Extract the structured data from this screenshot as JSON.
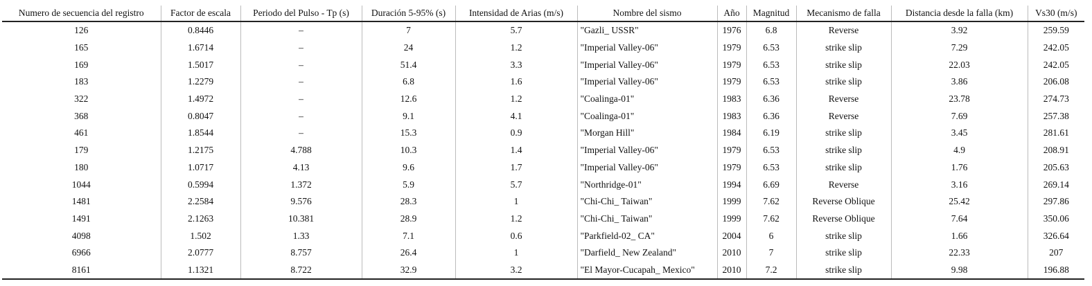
{
  "table": {
    "header": [
      "Numero de secuencia del registro",
      "Factor de escala",
      "Periodo del Pulso - Tp (s)",
      "Duración 5-95% (s)",
      "Intensidad de Arias (m/s)",
      "Nombre del sismo",
      "Año",
      "Magnitud",
      "Mecanismo de falla",
      "Distancia desde la falla (km)",
      "Vs30 (m/s)"
    ],
    "rows": [
      [
        "126",
        "0.8446",
        "–",
        "7",
        "5.7",
        "\"Gazli_ USSR\"",
        "1976",
        "6.8",
        "Reverse",
        "3.92",
        "259.59"
      ],
      [
        "165",
        "1.6714",
        "–",
        "24",
        "1.2",
        "\"Imperial Valley-06\"",
        "1979",
        "6.53",
        "strike slip",
        "7.29",
        "242.05"
      ],
      [
        "169",
        "1.5017",
        "–",
        "51.4",
        "3.3",
        "\"Imperial Valley-06\"",
        "1979",
        "6.53",
        "strike slip",
        "22.03",
        "242.05"
      ],
      [
        "183",
        "1.2279",
        "–",
        "6.8",
        "1.6",
        "\"Imperial Valley-06\"",
        "1979",
        "6.53",
        "strike slip",
        "3.86",
        "206.08"
      ],
      [
        "322",
        "1.4972",
        "–",
        "12.6",
        "1.2",
        "\"Coalinga-01\"",
        "1983",
        "6.36",
        "Reverse",
        "23.78",
        "274.73"
      ],
      [
        "368",
        "0.8047",
        "–",
        "9.1",
        "4.1",
        "\"Coalinga-01\"",
        "1983",
        "6.36",
        "Reverse",
        "7.69",
        "257.38"
      ],
      [
        "461",
        "1.8544",
        "–",
        "15.3",
        "0.9",
        "\"Morgan Hill\"",
        "1984",
        "6.19",
        "strike slip",
        "3.45",
        "281.61"
      ],
      [
        "179",
        "1.2175",
        "4.788",
        "10.3",
        "1.4",
        "\"Imperial Valley-06\"",
        "1979",
        "6.53",
        "strike slip",
        "4.9",
        "208.91"
      ],
      [
        "180",
        "1.0717",
        "4.13",
        "9.6",
        "1.7",
        "\"Imperial Valley-06\"",
        "1979",
        "6.53",
        "strike slip",
        "1.76",
        "205.63"
      ],
      [
        "1044",
        "0.5994",
        "1.372",
        "5.9",
        "5.7",
        "\"Northridge-01\"",
        "1994",
        "6.69",
        "Reverse",
        "3.16",
        "269.14"
      ],
      [
        "1481",
        "2.2584",
        "9.576",
        "28.3",
        "1",
        "\"Chi-Chi_ Taiwan\"",
        "1999",
        "7.62",
        "Reverse Oblique",
        "25.42",
        "297.86"
      ],
      [
        "1491",
        "2.1263",
        "10.381",
        "28.9",
        "1.2",
        "\"Chi-Chi_ Taiwan\"",
        "1999",
        "7.62",
        "Reverse Oblique",
        "7.64",
        "350.06"
      ],
      [
        "4098",
        "1.502",
        "1.33",
        "7.1",
        "0.6",
        "\"Parkfield-02_ CA\"",
        "2004",
        "6",
        "strike slip",
        "1.66",
        "326.64"
      ],
      [
        "6966",
        "2.0777",
        "8.757",
        "26.4",
        "1",
        "\"Darfield_ New Zealand\"",
        "2010",
        "7",
        "strike slip",
        "22.33",
        "207"
      ],
      [
        "8161",
        "1.1321",
        "8.722",
        "32.9",
        "3.2",
        "\"El Mayor-Cucapah_ Mexico\"",
        "2010",
        "7.2",
        "strike slip",
        "9.98",
        "196.88"
      ]
    ]
  }
}
